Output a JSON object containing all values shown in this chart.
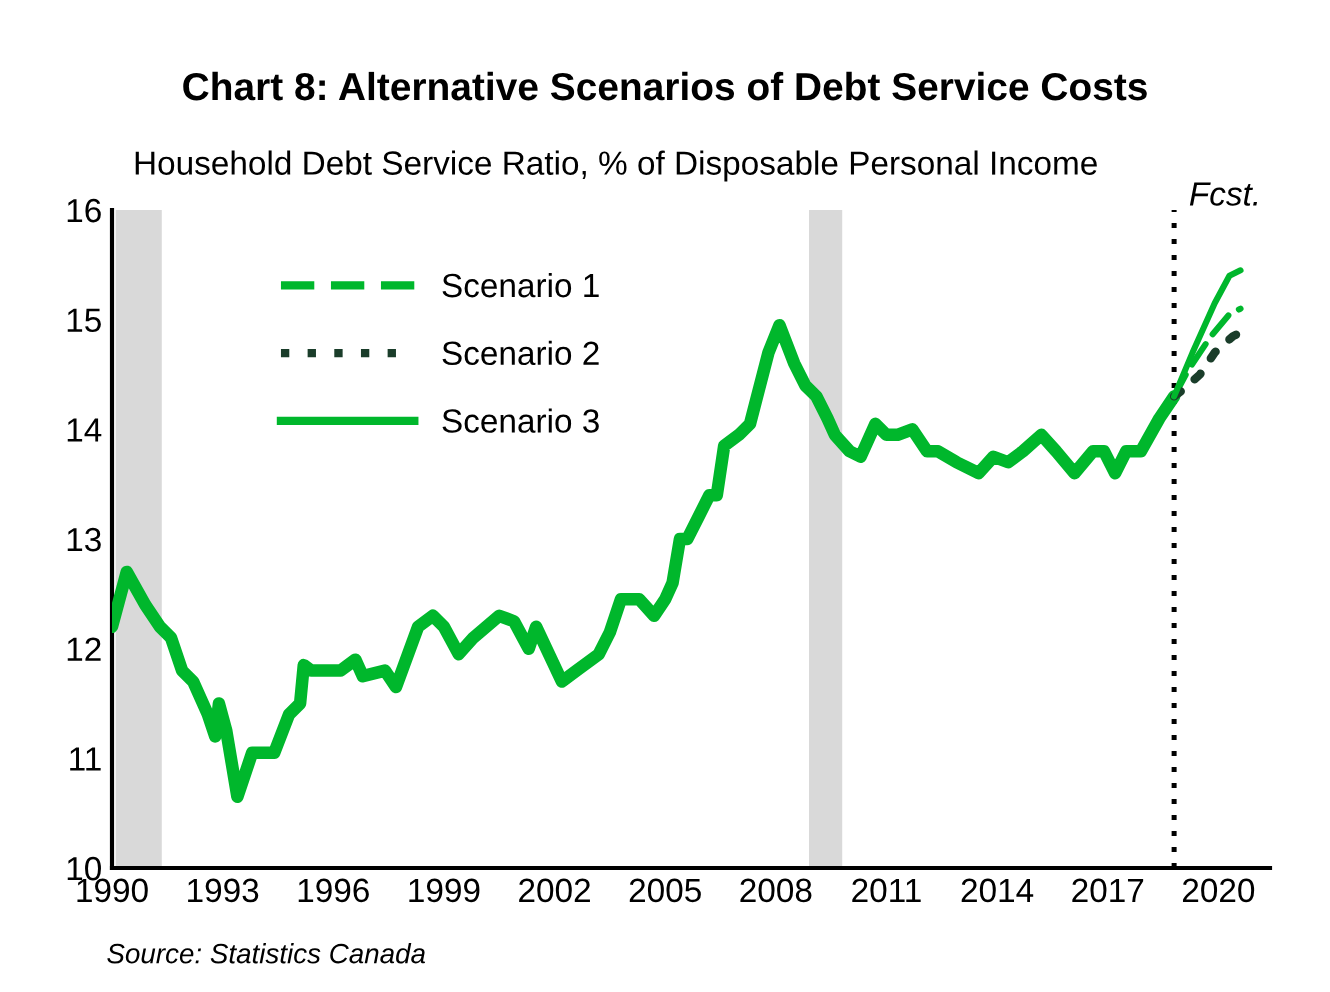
{
  "chart_data": {
    "type": "line",
    "title": "Chart 8: Alternative Scenarios of Debt Service Costs",
    "subtitle": "Household Debt Service Ratio, % of Disposable Personal Income",
    "xlim": [
      1990,
      2021.4
    ],
    "xticks": [
      1990,
      1993,
      1996,
      1999,
      2002,
      2005,
      2008,
      2011,
      2014,
      2017,
      2020
    ],
    "ylim": [
      10,
      16
    ],
    "yticks": [
      10,
      11,
      12,
      13,
      14,
      15,
      16
    ],
    "grid": false,
    "legend": "top left",
    "series": [
      {
        "color": "#00b72c",
        "line_style": "solid",
        "x": [
          1990.0,
          1990.4,
          1990.9,
          1991.3,
          1991.6,
          1991.9,
          1992.2,
          1992.6,
          1992.8,
          1992.9,
          1993.1,
          1993.4,
          1993.8,
          1994.0,
          1994.4,
          1994.8,
          1995.1,
          1995.2,
          1995.4,
          1996.2,
          1996.6,
          1996.8,
          1997.4,
          1997.7,
          1998.3,
          1998.7,
          1999.0,
          1999.4,
          1999.8,
          2000.5,
          2000.9,
          2001.3,
          2001.5,
          2002.2,
          2002.6,
          2003.2,
          2003.5,
          2003.8,
          2004.3,
          2004.7,
          2005.0,
          2005.2,
          2005.4,
          2005.6,
          2005.9,
          2006.2,
          2006.4,
          2006.6,
          2007.0,
          2007.3,
          2007.8,
          2008.1,
          2008.5,
          2008.8,
          2009.1,
          2009.4,
          2009.6,
          2010.0,
          2010.3,
          2010.7,
          2011.0,
          2011.3,
          2011.7,
          2012.1,
          2012.4,
          2012.9,
          2013.5,
          2013.9,
          2014.3,
          2014.7,
          2015.2,
          2015.6,
          2016.1,
          2016.6,
          2016.9,
          2017.2,
          2017.5,
          2017.9,
          2018.4,
          2018.8
        ],
        "values": [
          12.2,
          12.7,
          12.4,
          12.2,
          12.1,
          11.8,
          11.7,
          11.4,
          11.2,
          11.5,
          11.25,
          10.65,
          11.05,
          11.05,
          11.05,
          11.4,
          11.5,
          11.85,
          11.8,
          11.8,
          11.9,
          11.75,
          11.8,
          11.65,
          12.2,
          12.3,
          12.2,
          11.95,
          12.1,
          12.3,
          12.25,
          12.0,
          12.2,
          11.7,
          11.8,
          11.95,
          12.15,
          12.45,
          12.45,
          12.3,
          12.45,
          12.6,
          13.0,
          13.0,
          13.2,
          13.4,
          13.4,
          13.85,
          13.95,
          14.05,
          14.7,
          14.95,
          14.6,
          14.4,
          14.3,
          14.1,
          13.95,
          13.8,
          13.75,
          14.05,
          13.95,
          13.95,
          14.0,
          13.8,
          13.8,
          13.7,
          13.6,
          13.75,
          13.7,
          13.8,
          13.95,
          13.8,
          13.6,
          13.8,
          13.8,
          13.6,
          13.8,
          13.8,
          14.1,
          14.3
        ]
      },
      {
        "name": "Scenario 1",
        "color": "#00b72c",
        "line_style": "dashed",
        "x": [
          2018.8,
          2019.2,
          2019.8,
          2020.3,
          2020.6
        ],
        "values": [
          14.3,
          14.55,
          14.85,
          15.05,
          15.1
        ]
      },
      {
        "name": "Scenario 2",
        "color": "#1a3d2a",
        "line_style": "dotted",
        "x": [
          2018.8,
          2019.0,
          2019.5,
          2019.9,
          2020.4,
          2020.7
        ],
        "values": [
          14.3,
          14.35,
          14.5,
          14.7,
          14.85,
          14.9
        ]
      },
      {
        "name": "Scenario 3",
        "color": "#00b72c",
        "line_style": "solid",
        "x": [
          2018.8,
          2019.3,
          2019.9,
          2020.3,
          2020.6
        ],
        "values": [
          14.3,
          14.7,
          15.15,
          15.4,
          15.45
        ]
      }
    ],
    "bands": [
      {
        "axis": "x",
        "from": 1990.1,
        "to": 1991.35,
        "color": "#d9d9d9"
      },
      {
        "axis": "x",
        "from": 2008.9,
        "to": 2009.8,
        "color": "#d9d9d9"
      }
    ],
    "ref_lines": [
      {
        "axis": "x",
        "value": 2018.8,
        "label": "Fcst.",
        "color": "#000000",
        "line_style": "dotted"
      }
    ],
    "annotations": [
      "Source: Statistics Canada"
    ]
  }
}
